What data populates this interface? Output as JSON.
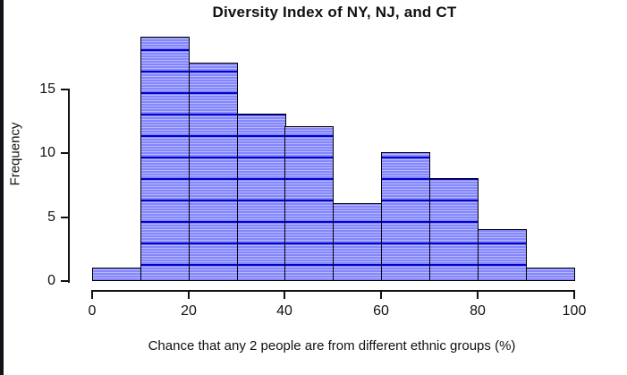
{
  "window": {
    "background": "#ffffff",
    "edge_color": "#141216"
  },
  "chart_data": {
    "type": "bar",
    "subtype": "histogram",
    "title": "Diversity Index of NY, NJ, and CT",
    "xlabel": "Chance that any 2 people are from different ethnic groups (%)",
    "ylabel": "Frequency",
    "bin_edges": [
      0,
      10,
      20,
      30,
      40,
      50,
      60,
      70,
      80,
      90,
      100
    ],
    "frequencies": [
      1,
      19,
      17,
      13,
      12,
      6,
      10,
      8,
      4,
      1
    ],
    "x_ticks": [
      0,
      20,
      40,
      60,
      80,
      100
    ],
    "y_ticks": [
      0,
      5,
      10,
      15
    ],
    "xlim": [
      0,
      100
    ],
    "ylim": [
      0,
      19
    ],
    "grid": false,
    "legend": null,
    "colors": {
      "bar_fill": "#8486fb",
      "bar_stripe_light": "#b6b8ff",
      "bar_hatch_line": "#0202cc",
      "bar_border": "#000000",
      "axis": "#111111",
      "text": "#111111"
    }
  }
}
